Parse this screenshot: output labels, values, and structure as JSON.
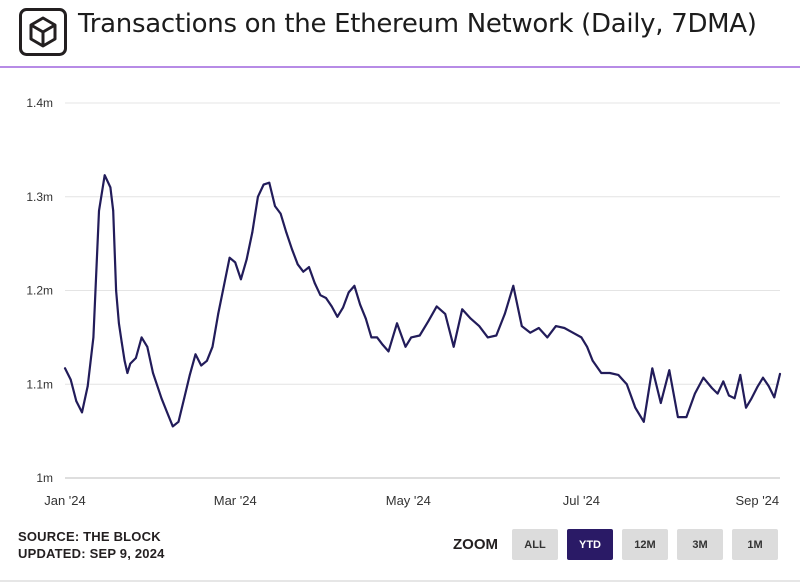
{
  "header": {
    "title": "Transactions on the Ethereum Network (Daily, 7DMA)",
    "logo_icon": "cube-logo-icon",
    "accent_color": "#b78be6"
  },
  "chart_data": {
    "type": "line",
    "title": "Transactions on the Ethereum Network (Daily, 7DMA)",
    "xlabel": "",
    "ylabel": "",
    "line_color": "#221c5a",
    "grid": "horizontal",
    "ylim": [
      1000000,
      1400000
    ],
    "yticks": [
      {
        "value": 1000000,
        "label": "1m"
      },
      {
        "value": 1100000,
        "label": "1.1m"
      },
      {
        "value": 1200000,
        "label": "1.2m"
      },
      {
        "value": 1300000,
        "label": "1.3m"
      },
      {
        "value": 1400000,
        "label": "1.4m"
      }
    ],
    "xlim": [
      "2024-01-01",
      "2024-09-09"
    ],
    "xticks": [
      {
        "value": "2024-01-01",
        "label": "Jan '24"
      },
      {
        "value": "2024-03-01",
        "label": "Mar '24"
      },
      {
        "value": "2024-05-01",
        "label": "May '24"
      },
      {
        "value": "2024-07-01",
        "label": "Jul '24"
      },
      {
        "value": "2024-09-01",
        "label": "Sep '24"
      }
    ],
    "series": [
      {
        "x": [
          "2024-01-01",
          "2024-01-03",
          "2024-01-05",
          "2024-01-07",
          "2024-01-09",
          "2024-01-11",
          "2024-01-13",
          "2024-01-15",
          "2024-01-17",
          "2024-01-18",
          "2024-01-19",
          "2024-01-20",
          "2024-01-21",
          "2024-01-22",
          "2024-01-23",
          "2024-01-24",
          "2024-01-26",
          "2024-01-28",
          "2024-01-30",
          "2024-02-01",
          "2024-02-04",
          "2024-02-06",
          "2024-02-08",
          "2024-02-10",
          "2024-02-12",
          "2024-02-14",
          "2024-02-16",
          "2024-02-18",
          "2024-02-20",
          "2024-02-22",
          "2024-02-24",
          "2024-02-26",
          "2024-02-28",
          "2024-03-01",
          "2024-03-03",
          "2024-03-05",
          "2024-03-07",
          "2024-03-09",
          "2024-03-11",
          "2024-03-13",
          "2024-03-15",
          "2024-03-17",
          "2024-03-19",
          "2024-03-21",
          "2024-03-23",
          "2024-03-25",
          "2024-03-27",
          "2024-03-29",
          "2024-03-31",
          "2024-04-02",
          "2024-04-04",
          "2024-04-06",
          "2024-04-08",
          "2024-04-10",
          "2024-04-12",
          "2024-04-14",
          "2024-04-16",
          "2024-04-18",
          "2024-04-20",
          "2024-04-22",
          "2024-04-24",
          "2024-04-27",
          "2024-04-30",
          "2024-05-02",
          "2024-05-05",
          "2024-05-08",
          "2024-05-11",
          "2024-05-14",
          "2024-05-17",
          "2024-05-20",
          "2024-05-23",
          "2024-05-26",
          "2024-05-29",
          "2024-06-01",
          "2024-06-04",
          "2024-06-07",
          "2024-06-10",
          "2024-06-13",
          "2024-06-16",
          "2024-06-19",
          "2024-06-22",
          "2024-06-25",
          "2024-06-28",
          "2024-07-01",
          "2024-07-03",
          "2024-07-05",
          "2024-07-08",
          "2024-07-11",
          "2024-07-14",
          "2024-07-17",
          "2024-07-20",
          "2024-07-23",
          "2024-07-26",
          "2024-07-29",
          "2024-08-01",
          "2024-08-04",
          "2024-08-07",
          "2024-08-10",
          "2024-08-13",
          "2024-08-16",
          "2024-08-18",
          "2024-08-20",
          "2024-08-22",
          "2024-08-24",
          "2024-08-26",
          "2024-08-28",
          "2024-08-30",
          "2024-09-01",
          "2024-09-03",
          "2024-09-05",
          "2024-09-07",
          "2024-09-09"
        ],
        "y": [
          1117000,
          1105000,
          1082000,
          1070000,
          1098000,
          1150000,
          1285000,
          1323000,
          1310000,
          1285000,
          1200000,
          1165000,
          1145000,
          1125000,
          1112000,
          1122000,
          1128000,
          1150000,
          1140000,
          1112000,
          1085000,
          1070000,
          1055000,
          1060000,
          1085000,
          1110000,
          1132000,
          1120000,
          1125000,
          1140000,
          1175000,
          1205000,
          1235000,
          1230000,
          1212000,
          1233000,
          1262000,
          1300000,
          1313000,
          1315000,
          1290000,
          1282000,
          1262000,
          1244000,
          1228000,
          1220000,
          1225000,
          1208000,
          1195000,
          1192000,
          1183000,
          1172000,
          1182000,
          1198000,
          1205000,
          1185000,
          1170000,
          1150000,
          1150000,
          1142000,
          1135000,
          1165000,
          1140000,
          1150000,
          1152000,
          1167000,
          1183000,
          1175000,
          1140000,
          1180000,
          1170000,
          1162000,
          1150000,
          1152000,
          1175000,
          1205000,
          1162000,
          1155000,
          1160000,
          1150000,
          1162000,
          1160000,
          1155000,
          1150000,
          1140000,
          1125000,
          1112000,
          1112000,
          1110000,
          1100000,
          1075000,
          1060000,
          1117000,
          1080000,
          1115000,
          1065000,
          1065000,
          1090000,
          1107000,
          1096000,
          1090000,
          1103000,
          1088000,
          1085000,
          1110000,
          1075000,
          1085000,
          1097000,
          1107000,
          1098000,
          1086000,
          1111000
        ]
      }
    ]
  },
  "footer": {
    "source": "SOURCE: THE BLOCK",
    "updated": "UPDATED: SEP 9, 2024",
    "zoom_label": "ZOOM",
    "zoom_buttons": [
      {
        "label": "ALL",
        "active": false
      },
      {
        "label": "YTD",
        "active": true
      },
      {
        "label": "12M",
        "active": false
      },
      {
        "label": "3M",
        "active": false
      },
      {
        "label": "1M",
        "active": false
      }
    ],
    "active_color": "#2a1a66"
  }
}
